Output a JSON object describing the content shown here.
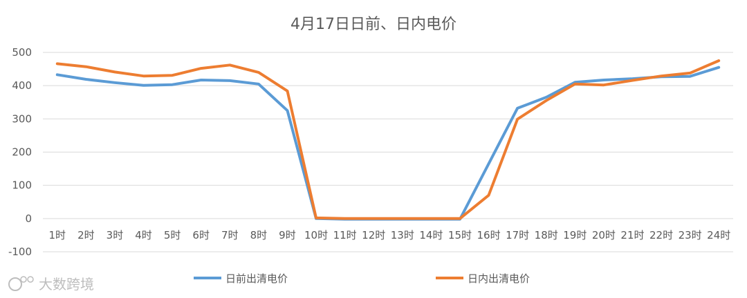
{
  "chart_data": {
    "type": "line",
    "title": "4月17日日前、日内电价",
    "xlabel": "",
    "ylabel": "",
    "categories": [
      "1时",
      "2时",
      "3时",
      "4时",
      "5时",
      "6时",
      "7时",
      "8时",
      "9时",
      "10时",
      "11时",
      "12时",
      "13时",
      "14时",
      "15时",
      "16时",
      "17时",
      "18时",
      "19时",
      "20时",
      "21时",
      "22时",
      "23时",
      "24时"
    ],
    "ylim": [
      -100,
      500
    ],
    "yticks": [
      "-100",
      "0",
      "100",
      "200",
      "300",
      "400",
      "500"
    ],
    "grid": true,
    "legend": "bottom",
    "series": [
      {
        "name": "日前出清电价",
        "color": "#5b9bd5",
        "values": [
          433,
          419,
          409,
          401,
          403,
          417,
          415,
          405,
          325,
          0,
          -2,
          -2,
          -2,
          -2,
          -2,
          165,
          332,
          365,
          410,
          417,
          421,
          427,
          428,
          455
        ]
      },
      {
        "name": "日内出清电价",
        "color": "#ed7d31",
        "values": [
          466,
          457,
          441,
          429,
          431,
          452,
          462,
          440,
          384,
          2,
          0,
          0,
          0,
          0,
          0,
          70,
          299,
          355,
          405,
          402,
          416,
          429,
          438,
          475
        ]
      }
    ]
  },
  "watermark": {
    "text": "大数跨境",
    "icon": "weibo-logo-icon"
  }
}
